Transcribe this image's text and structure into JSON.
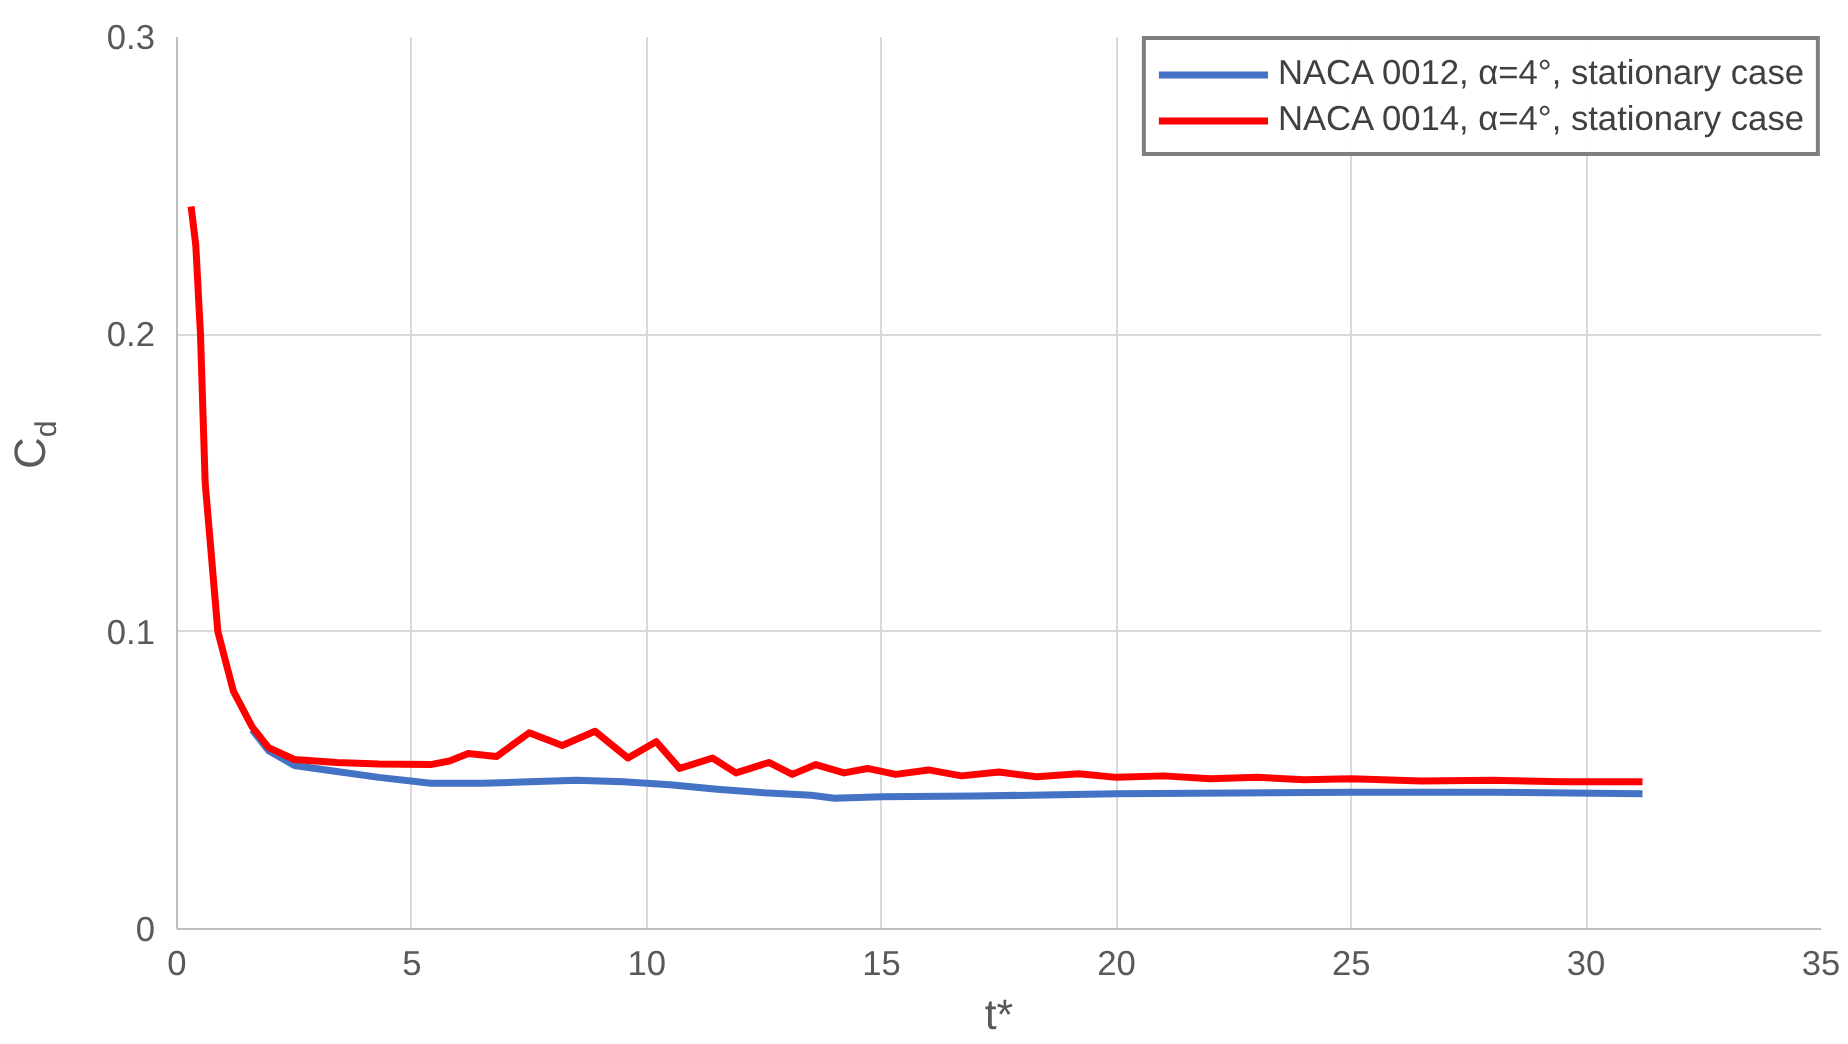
{
  "chart_data": {
    "type": "line",
    "xlabel": "t*",
    "ylabel": "C$_{d}$",
    "xlim": [
      0,
      35
    ],
    "ylim": [
      0,
      0.3
    ],
    "xticks": [
      0,
      5,
      10,
      15,
      20,
      25,
      30,
      35
    ],
    "yticks": [
      0,
      0.1,
      0.2,
      0.3
    ],
    "grid": true,
    "legend": "top right",
    "marker": "none",
    "line_style": "solid",
    "series": [
      {
        "name": "NACA 0012, α=4°, stationary case",
        "color": "#4472c4",
        "x": [
          1.6,
          1.95,
          2.5,
          3.4,
          4.3,
          5.4,
          6.5,
          7.5,
          8.5,
          9.5,
          10.5,
          11.5,
          12.5,
          13.5,
          14,
          15,
          17,
          20,
          25,
          28,
          31.2
        ],
        "values": [
          0.067,
          0.06,
          0.055,
          0.053,
          0.051,
          0.049,
          0.049,
          0.0495,
          0.05,
          0.0495,
          0.0485,
          0.047,
          0.0458,
          0.045,
          0.044,
          0.0445,
          0.0447,
          0.0455,
          0.046,
          0.046,
          0.0455
        ]
      },
      {
        "name": "NACA 0014, α=4°, stationary case",
        "color": "#ff0000",
        "x": [
          0.3,
          0.4,
          0.5,
          0.6,
          0.87,
          1.2,
          1.6,
          1.95,
          2.5,
          3.4,
          4.3,
          5.4,
          5.8,
          6.2,
          6.8,
          7.5,
          8.2,
          8.9,
          9.6,
          10.2,
          10.7,
          11.4,
          11.9,
          12.6,
          13.1,
          13.6,
          14.2,
          14.7,
          15.3,
          16,
          16.7,
          17.5,
          18.3,
          19.2,
          20,
          21,
          22,
          23,
          24,
          25,
          26.5,
          28,
          29.5,
          31.2
        ],
        "values": [
          0.243,
          0.23,
          0.2,
          0.15,
          0.1,
          0.08,
          0.068,
          0.061,
          0.057,
          0.056,
          0.0555,
          0.0553,
          0.0565,
          0.059,
          0.058,
          0.066,
          0.0617,
          0.0665,
          0.0575,
          0.063,
          0.054,
          0.0575,
          0.0525,
          0.056,
          0.052,
          0.0553,
          0.0525,
          0.054,
          0.052,
          0.0535,
          0.0515,
          0.0528,
          0.0512,
          0.0522,
          0.051,
          0.0515,
          0.0505,
          0.051,
          0.0502,
          0.0505,
          0.0498,
          0.05,
          0.0495,
          0.0495
        ]
      }
    ]
  }
}
